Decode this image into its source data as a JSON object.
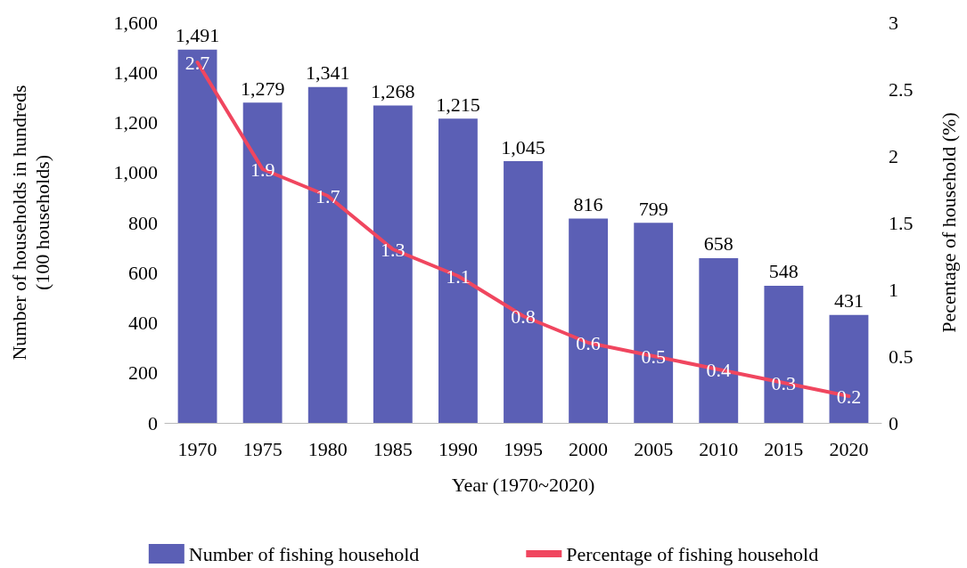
{
  "chart_data": {
    "type": "bar",
    "xlabel": "Year (1970~2020)",
    "ylabel": "Number of households in hundreds\n(100 households)",
    "y2label": "Pecentage of household (%)",
    "categories": [
      "1970",
      "1975",
      "1980",
      "1985",
      "1990",
      "1995",
      "2000",
      "2005",
      "2010",
      "2015",
      "2020"
    ],
    "series": [
      {
        "name": "Number of fishing household",
        "color": "#5b5fb5",
        "values": [
          1491,
          1279,
          1341,
          1268,
          1215,
          1045,
          816,
          799,
          658,
          548,
          431
        ],
        "value_labels": [
          "1,491",
          "1,279",
          "1,341",
          "1,268",
          "1,215",
          "1,045",
          "816",
          "799",
          "658",
          "548",
          "431"
        ]
      },
      {
        "name": "Percentage of fishing household",
        "type": "line",
        "axis": "y2",
        "color": "#f0465f",
        "values": [
          2.7,
          1.9,
          1.7,
          1.3,
          1.1,
          0.8,
          0.6,
          0.5,
          0.4,
          0.3,
          0.2
        ],
        "value_labels": [
          "2.7",
          "1.9",
          "1.7",
          "1.3",
          "1.1",
          "0.8",
          "0.6",
          "0.5",
          "0.4",
          "0.3",
          "0.2"
        ]
      }
    ],
    "ylim": [
      0,
      1600
    ],
    "yticks": [
      0,
      200,
      400,
      600,
      800,
      {
        "value": 1000,
        "label": "1,000"
      },
      {
        "value": 1200,
        "label": "1,200"
      },
      {
        "value": 1400,
        "label": "1,400"
      },
      {
        "value": 1600,
        "label": "1,600"
      }
    ],
    "y2lim": [
      0,
      3
    ],
    "y2ticks": [
      0,
      0.5,
      1,
      1.5,
      2,
      2.5,
      3
    ],
    "grid": false,
    "legend": "bottom",
    "marker": "none",
    "line_style": "solid"
  }
}
